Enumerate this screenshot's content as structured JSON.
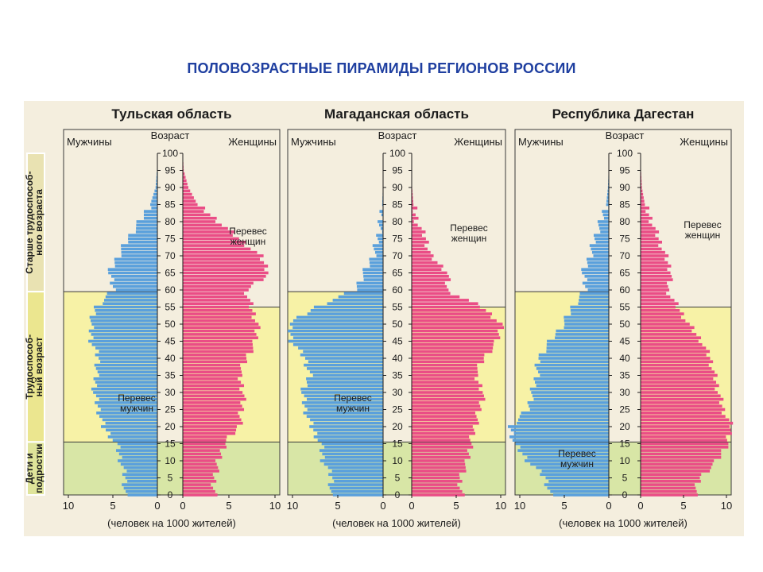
{
  "title": "ПОЛОВОЗРАСТНЫЕ ПИРАМИДЫ РЕГИОНОВ РОССИИ",
  "labels": {
    "men": "Мужчины",
    "women": "Женщины",
    "age": "Возраст",
    "x_caption": "(человек на 1000 жителей)",
    "excess_women_line1": "Перевес",
    "excess_women_line2": "женщин",
    "excess_men_line1": "Перевес",
    "excess_men_line2": "мужчин"
  },
  "age_groups": [
    {
      "label_line1": "Старше трудоспособ-",
      "label_line2": "ного возраста",
      "ages": [
        60,
        100
      ]
    },
    {
      "label_line1": "Трудоспособ-",
      "label_line2": "ный возраст",
      "ages": [
        16,
        59
      ]
    },
    {
      "label_line1": "Дети и",
      "label_line2": "подростки",
      "ages": [
        0,
        15
      ]
    }
  ],
  "colors": {
    "men": "#5aa0dc",
    "women": "#ea4d86",
    "old_band": "#f4eede",
    "working_band": "#f7f2a6",
    "children_band": "#d8e6a6",
    "title": "#1f3fa0",
    "group_tab": "#e2dd8c"
  },
  "chart_data": [
    {
      "type": "population-pyramid",
      "title": "Тульская область",
      "age_ticks": [
        "0",
        "5",
        "10",
        "15",
        "20",
        "25",
        "30",
        "35",
        "40",
        "45",
        "50",
        "55",
        "60",
        "65",
        "70",
        "75",
        "80",
        "85",
        "90",
        "95",
        "100"
      ],
      "men_xticks": [
        "10",
        "5",
        "0"
      ],
      "women_xticks": [
        "0",
        "5",
        "10"
      ],
      "xlim": [
        0,
        10
      ],
      "ages": [
        0,
        5,
        10,
        15,
        20,
        25,
        30,
        35,
        40,
        45,
        50,
        55,
        60,
        65,
        70,
        75,
        80,
        85,
        90,
        95,
        100
      ],
      "men": [
        3.7,
        3.6,
        4.1,
        4.6,
        6.1,
        6.6,
        7.1,
        6.9,
        6.6,
        7.4,
        7.5,
        6.9,
        4.9,
        5.4,
        4.4,
        3.3,
        2.0,
        0.8,
        0.2,
        0.05,
        0
      ],
      "women": [
        3.4,
        3.4,
        3.9,
        4.5,
        6.1,
        6.4,
        6.6,
        6.1,
        6.9,
        7.9,
        8.1,
        7.4,
        6.9,
        9.4,
        8.4,
        6.1,
        3.9,
        1.6,
        0.6,
        0.1,
        0
      ],
      "annotations": [
        "Перевес женщин",
        "Перевес мужчин"
      ]
    },
    {
      "type": "population-pyramid",
      "title": "Магаданская область",
      "age_ticks": [
        "0",
        "5",
        "10",
        "15",
        "20",
        "25",
        "30",
        "35",
        "40",
        "45",
        "50",
        "55",
        "60",
        "65",
        "70",
        "75",
        "80",
        "85",
        "90",
        "95",
        "100"
      ],
      "men_xticks": [
        "10",
        "5",
        "0"
      ],
      "women_xticks": [
        "0",
        "5",
        "10"
      ],
      "xlim": [
        0,
        10
      ],
      "ages": [
        0,
        5,
        10,
        15,
        20,
        25,
        30,
        35,
        40,
        45,
        50,
        55,
        60,
        65,
        70,
        75,
        80,
        85,
        90,
        95,
        100
      ],
      "men": [
        5.9,
        5.6,
        6.6,
        6.9,
        7.9,
        8.6,
        8.9,
        8.1,
        8.6,
        10.1,
        10.4,
        7.4,
        3.1,
        2.1,
        1.1,
        0.6,
        0.25,
        0.1,
        0.02,
        0,
        0
      ],
      "women": [
        5.6,
        5.4,
        6.3,
        6.6,
        7.1,
        7.6,
        8.1,
        7.1,
        8.1,
        9.6,
        10.1,
        7.9,
        3.9,
        4.1,
        2.1,
        1.6,
        0.6,
        0.2,
        0.05,
        0,
        0
      ],
      "annotations": [
        "Перевес женщин",
        "Перевес мужчин"
      ]
    },
    {
      "type": "population-pyramid",
      "title": "Республика Дагестан",
      "age_ticks": [
        "0",
        "5",
        "10",
        "15",
        "20",
        "25",
        "30",
        "35",
        "40",
        "45",
        "50",
        "55",
        "60",
        "65",
        "70",
        "75",
        "80",
        "85",
        "90",
        "95",
        "100"
      ],
      "men_xticks": [
        "10",
        "5",
        "0"
      ],
      "women_xticks": [
        "0",
        "5",
        "10"
      ],
      "xlim": [
        0,
        10
      ],
      "ages": [
        0,
        5,
        10,
        15,
        20,
        25,
        30,
        35,
        40,
        45,
        50,
        55,
        60,
        65,
        70,
        75,
        80,
        85,
        90,
        95,
        100
      ],
      "men": [
        6.6,
        7.1,
        9.1,
        10.6,
        11.1,
        9.1,
        8.6,
        8.1,
        7.9,
        6.6,
        5.1,
        4.1,
        2.6,
        2.9,
        2.1,
        1.6,
        0.9,
        0.3,
        0.1,
        0.02,
        0
      ],
      "women": [
        6.3,
        6.9,
        8.9,
        10.1,
        10.6,
        9.6,
        9.1,
        8.6,
        8.1,
        7.1,
        5.6,
        4.3,
        3.1,
        3.6,
        2.9,
        2.1,
        1.3,
        0.5,
        0.15,
        0.05,
        0
      ],
      "annotations": [
        "Перевес женщин",
        "Перевес мужчин"
      ]
    }
  ]
}
